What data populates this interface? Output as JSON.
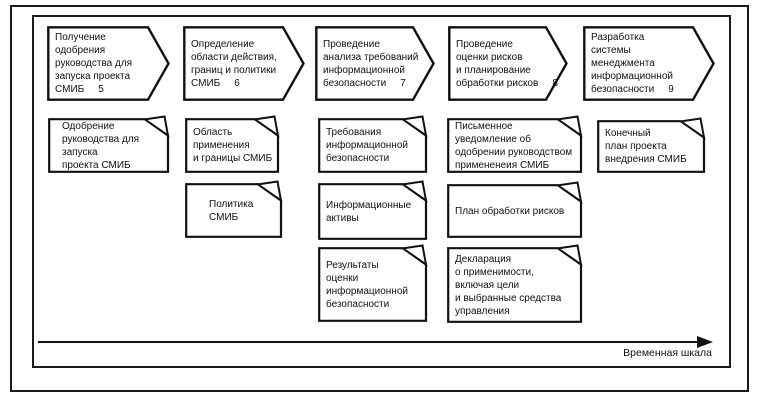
{
  "colors": {
    "ink": "#111111",
    "paper": "#ffffff"
  },
  "arrows": [
    {
      "text": "Получение\nодобрения\nруководства для\nзапуска проекта\nСМИБ",
      "num": "5"
    },
    {
      "text": "Определение\nобласти действия,\nграниц и политики\nСМИБ",
      "num": "6"
    },
    {
      "text": "Проведение\nанализа требований\nинформационной\nбезопасности",
      "num": "7"
    },
    {
      "text": "Проведение\nоценки рисков\nи планирование\nобработки рисков",
      "num": "8"
    },
    {
      "text": "Разработка\nсистемы\nменеджмента\nинформационной\nбезопасности",
      "num": "9"
    }
  ],
  "documents": [
    {
      "text": "Одобрение\nруководства для\nзапуска\nпроекта СМИБ"
    },
    {
      "text": "Область\nприменения\nи границы СМИБ"
    },
    {
      "text": "Политика\nСМИБ"
    },
    {
      "text": "Требования\nинформационной\nбезопасности"
    },
    {
      "text": "Информационные\nактивы"
    },
    {
      "text": "Результаты\nоценки\nинформационной\nбезопасности"
    },
    {
      "text": "Письменное\nуведомление об\nодобрении руководством\nпримененеия СМИБ"
    },
    {
      "text": "План обработки рисков"
    },
    {
      "text": "Декларация\nо применимости,\nвключая цели\nи выбранные средства\nуправления"
    },
    {
      "text": "Конечный\nплан проекта\nвнедрения СМИБ"
    }
  ],
  "timeline": {
    "label": "Временная шкала"
  }
}
